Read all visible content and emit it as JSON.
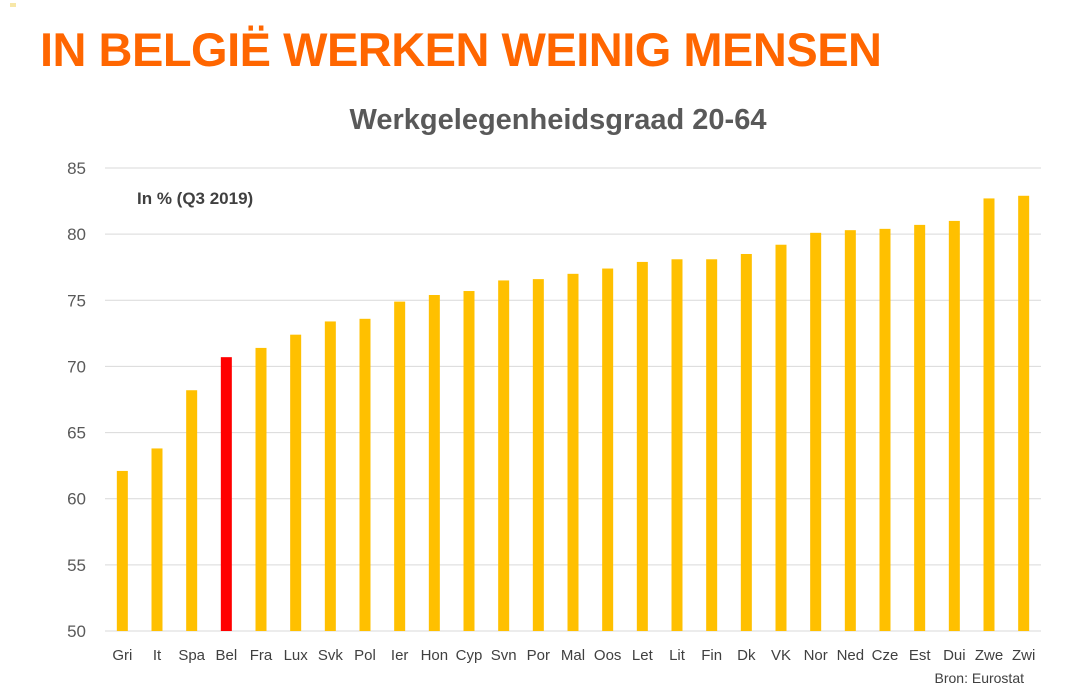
{
  "headline": "IN BELGIË WERKEN WEINIG MENSEN",
  "source": "Bron: Eurostat",
  "colors": {
    "headline": "#FF6600",
    "bar_default": "#FFC000",
    "bar_highlight": "#FF0000",
    "gridline": "#D9D9D9",
    "axis_text": "#595959"
  },
  "chart_data": {
    "type": "bar",
    "title": "Werkgelegenheidsgraad 20-64",
    "annotation": "In % (Q3 2019)",
    "xlabel": "",
    "ylabel": "",
    "ylim": [
      50,
      85
    ],
    "yticks": [
      50,
      55,
      60,
      65,
      70,
      75,
      80,
      85
    ],
    "grid": true,
    "highlight_category": "Bel",
    "categories": [
      "Gri",
      "It",
      "Spa",
      "Bel",
      "Fra",
      "Lux",
      "Svk",
      "Pol",
      "Ier",
      "Hon",
      "Cyp",
      "Svn",
      "Por",
      "Mal",
      "Oos",
      "Let",
      "Lit",
      "Fin",
      "Dk",
      "VK",
      "Nor",
      "Ned",
      "Cze",
      "Est",
      "Dui",
      "Zwe",
      "Zwi"
    ],
    "values": [
      62.1,
      63.8,
      68.2,
      70.7,
      71.4,
      72.4,
      73.4,
      73.6,
      74.9,
      75.4,
      75.7,
      76.5,
      76.6,
      77.0,
      77.4,
      77.9,
      78.1,
      78.1,
      78.5,
      79.2,
      80.1,
      80.3,
      80.4,
      80.7,
      81.0,
      82.7,
      82.9
    ]
  }
}
